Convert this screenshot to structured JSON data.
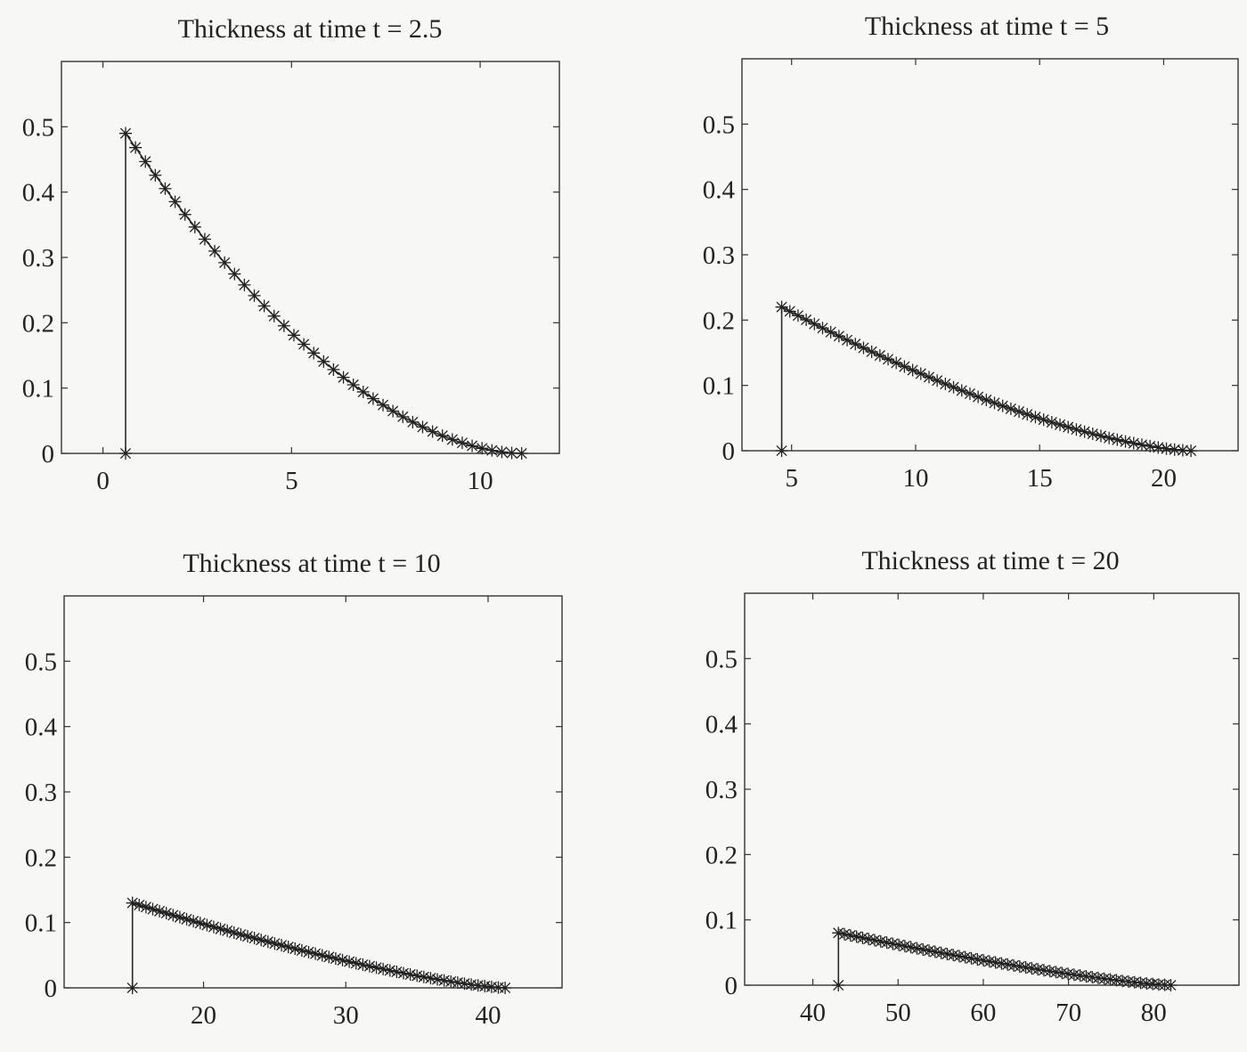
{
  "chart_data": [
    {
      "type": "line",
      "title": "Thickness at time t = 2.5",
      "xticks": [
        0,
        5,
        10
      ],
      "yticks": [
        0,
        0.1,
        0.2,
        0.3,
        0.4,
        0.5
      ],
      "xlim": [
        -1.1,
        12.1
      ],
      "ylim": [
        0,
        0.6
      ],
      "marker": "asterisk",
      "front": {
        "x": 0.6,
        "y": 0
      },
      "curve": {
        "x_start": 0.6,
        "x_end": 11.1,
        "y_start": 0.49,
        "shape": "power",
        "exponent": 1.8,
        "points": 41
      }
    },
    {
      "type": "line",
      "title": "Thickness at time t = 5",
      "xticks": [
        5,
        10,
        15,
        20
      ],
      "yticks": [
        0,
        0.1,
        0.2,
        0.3,
        0.4,
        0.5
      ],
      "xlim": [
        3,
        23
      ],
      "ylim": [
        0,
        0.6
      ],
      "marker": "asterisk",
      "front": {
        "x": 4.6,
        "y": 0
      },
      "curve": {
        "x_start": 4.6,
        "x_end": 21.1,
        "y_start": 0.22,
        "shape": "power",
        "exponent": 1.5,
        "points": 51
      }
    },
    {
      "type": "line",
      "title": "Thickness at time t = 10",
      "xticks": [
        20,
        30,
        40
      ],
      "yticks": [
        0,
        0.1,
        0.2,
        0.3,
        0.4,
        0.5
      ],
      "xlim": [
        10.2,
        45.2
      ],
      "ylim": [
        0,
        0.6
      ],
      "marker": "asterisk",
      "front": {
        "x": 15,
        "y": 0
      },
      "curve": {
        "x_start": 15,
        "x_end": 41.2,
        "y_start": 0.13,
        "shape": "power",
        "exponent": 1.35,
        "points": 56
      }
    },
    {
      "type": "line",
      "title": "Thickness at time t = 20",
      "xticks": [
        40,
        50,
        60,
        70,
        80
      ],
      "yticks": [
        0,
        0.1,
        0.2,
        0.3,
        0.4,
        0.5
      ],
      "xlim": [
        32,
        90
      ],
      "ylim": [
        0,
        0.6
      ],
      "marker": "asterisk",
      "front": {
        "x": 43,
        "y": 0
      },
      "curve": {
        "x_start": 43,
        "x_end": 82,
        "y_start": 0.08,
        "shape": "power",
        "exponent": 1.3,
        "points": 56
      }
    }
  ]
}
